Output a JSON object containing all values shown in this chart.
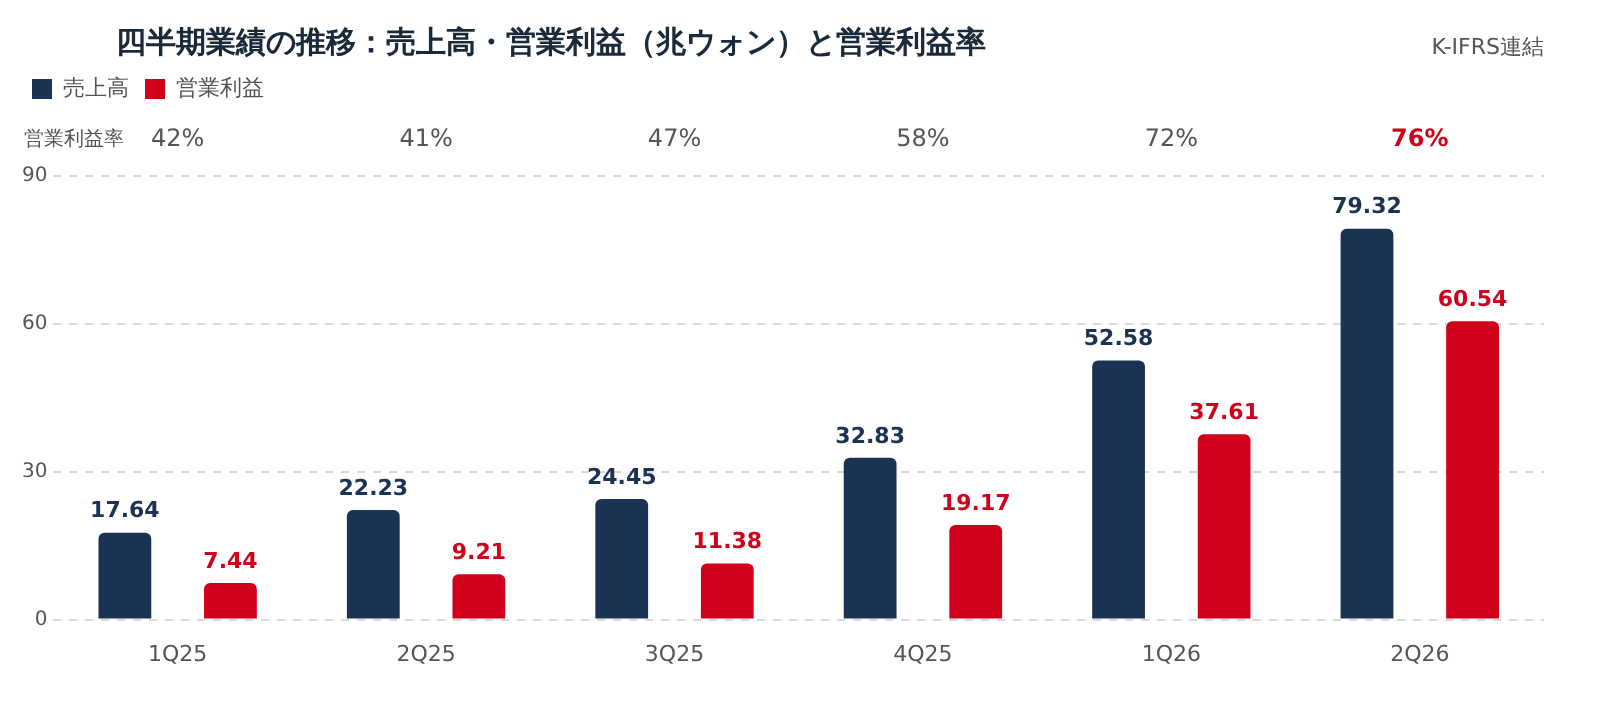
{
  "chart_data": {
    "type": "bar",
    "title": "四半期業績の推移：売上高・営業利益（兆ウォン）と営業利益率",
    "subtitle": "K-IFRS連結",
    "categories": [
      "1Q25",
      "2Q25",
      "3Q25",
      "4Q25",
      "1Q26",
      "2Q26"
    ],
    "series": [
      {
        "name": "売上高",
        "color": "#1b3352",
        "values": [
          17.64,
          22.23,
          24.45,
          32.83,
          52.58,
          79.32
        ]
      },
      {
        "name": "営業利益",
        "color": "#d0021b",
        "values": [
          7.44,
          9.21,
          11.38,
          19.17,
          37.61,
          60.54
        ]
      }
    ],
    "ylim": [
      0,
      90
    ],
    "yticks": [
      0,
      30,
      60,
      90
    ],
    "grid": "y",
    "legend": "top left",
    "data_labels": true,
    "annotations": [
      "営業利益率",
      "42%",
      "41%",
      "47%",
      "58%",
      "72%",
      "76%"
    ]
  }
}
